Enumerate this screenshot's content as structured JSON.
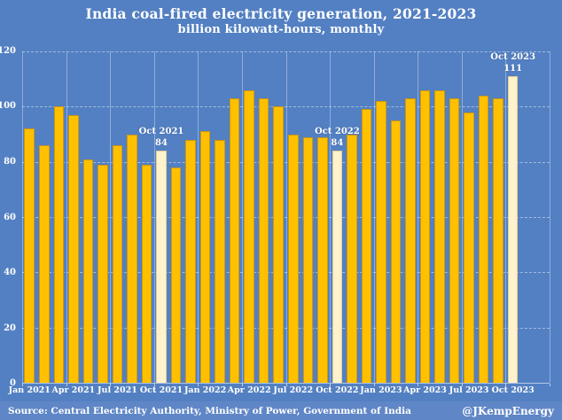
{
  "header": {
    "title": "India coal-fired electricity generation, 2021-2023",
    "subtitle": "billion kilowatt-hours, monthly"
  },
  "footer": {
    "source": "Source: Central Electricity Authority, Ministry of Power, Government of India",
    "credit": "@JKempEnergy"
  },
  "colors": {
    "background": "#5380c2",
    "footer_strip": "#5f86c6",
    "bar": "#ffc000",
    "bar_highlight": "#fff2cc",
    "text": "#ffffff"
  },
  "chart_data": {
    "type": "bar",
    "title": "India coal-fired electricity generation, 2021-2023",
    "subtitle": "billion kilowatt-hours, monthly",
    "xlabel": "",
    "ylabel": "billion kilowatt-hours",
    "ylim": [
      0,
      120
    ],
    "y_ticks": [
      0,
      20,
      40,
      60,
      80,
      100,
      120
    ],
    "grid": true,
    "legend": false,
    "categories": [
      "Jan 2021",
      "Feb 2021",
      "Mar 2021",
      "Apr 2021",
      "May 2021",
      "Jun 2021",
      "Jul 2021",
      "Aug 2021",
      "Sep 2021",
      "Oct 2021",
      "Nov 2021",
      "Dec 2021",
      "Jan 2022",
      "Feb 2022",
      "Mar 2022",
      "Apr 2022",
      "May 2022",
      "Jun 2022",
      "Jul 2022",
      "Aug 2022",
      "Sep 2022",
      "Oct 2022",
      "Nov 2022",
      "Dec 2022",
      "Jan 2023",
      "Feb 2023",
      "Mar 2023",
      "Apr 2023",
      "May 2023",
      "Jun 2023",
      "Jul 2023",
      "Aug 2023",
      "Sep 2023",
      "Oct 2023"
    ],
    "values": [
      92,
      86,
      100,
      97,
      81,
      79,
      86,
      90,
      79,
      84,
      78,
      88,
      91,
      88,
      103,
      106,
      103,
      100,
      90,
      89,
      89,
      84,
      90,
      99,
      102,
      95,
      103,
      106,
      106,
      103,
      98,
      104,
      103,
      111
    ],
    "highlighted_categories": [
      "Oct 2021",
      "Oct 2022",
      "Oct 2023"
    ],
    "annotations": [
      {
        "category": "Oct 2021",
        "lines": [
          "Oct 2021",
          "84"
        ]
      },
      {
        "category": "Oct 2022",
        "lines": [
          "Oct 2022",
          "84"
        ]
      },
      {
        "category": "Oct 2023",
        "lines": [
          "Oct 2023",
          "111"
        ]
      }
    ],
    "x_tick_labels": [
      "Jan 2021",
      "Apr 2021",
      "Jul 2021",
      "Oct 2021",
      "Jan 2022",
      "Apr 2022",
      "Jul 2022",
      "Oct 2022",
      "Jan 2023",
      "Apr 2023",
      "Jul 2023",
      "Oct 2023"
    ],
    "total_slots": 36,
    "vgrid_every": 3
  }
}
